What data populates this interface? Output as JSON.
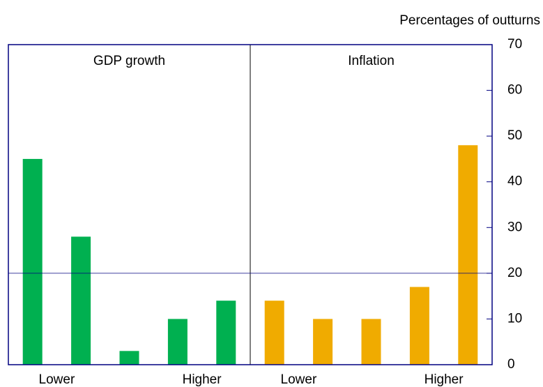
{
  "chart_data": {
    "type": "bar",
    "y_label": "Percentages of outturns",
    "ylim": [
      0,
      70
    ],
    "yticks": [
      0,
      10,
      20,
      30,
      40,
      50,
      60,
      70
    ],
    "reference_line": 20,
    "panels": [
      {
        "title": "GDP growth",
        "categories": [
          "Lower",
          null,
          null,
          null,
          "Higher"
        ],
        "color": "#00b050",
        "values": [
          45,
          28,
          3,
          10,
          14
        ]
      },
      {
        "title": "Inflation",
        "categories": [
          "Lower",
          null,
          null,
          null,
          "Higher"
        ],
        "color": "#f0ab00",
        "values": [
          14,
          10,
          10,
          17,
          48
        ]
      }
    ]
  }
}
